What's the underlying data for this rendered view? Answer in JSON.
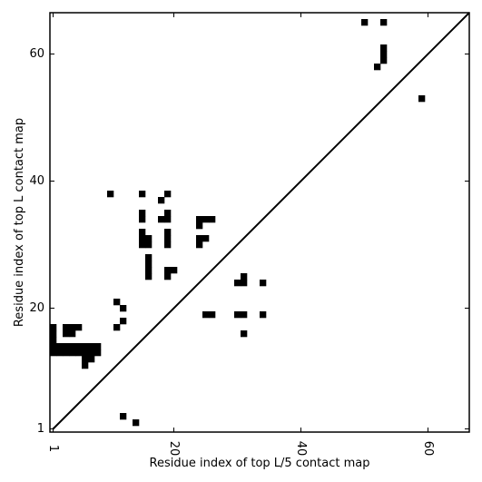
{
  "chart_data": {
    "type": "heatmap",
    "title": "",
    "xlabel": "Residue index of top L/5 contact map",
    "ylabel": "Residue index of top L contact map",
    "xlim": [
      0.5,
      66.5
    ],
    "ylim": [
      0.5,
      66.5
    ],
    "xticks": [
      {
        "value": 1,
        "label": "1"
      },
      {
        "value": 20,
        "label": "20"
      },
      {
        "value": 40,
        "label": "40"
      },
      {
        "value": 60,
        "label": "60"
      }
    ],
    "yticks": [
      {
        "value": 1,
        "label": "1"
      },
      {
        "value": 20,
        "label": "20"
      },
      {
        "value": 40,
        "label": "40"
      },
      {
        "value": 60,
        "label": "60"
      }
    ],
    "diagonal": true,
    "grid": false,
    "cell_color": "#000000",
    "background_color": "#ffffff",
    "cells": [
      [
        1,
        13
      ],
      [
        1,
        14
      ],
      [
        1,
        15
      ],
      [
        1,
        16
      ],
      [
        1,
        17
      ],
      [
        2,
        13
      ],
      [
        2,
        14
      ],
      [
        3,
        13
      ],
      [
        3,
        14
      ],
      [
        3,
        16
      ],
      [
        3,
        17
      ],
      [
        4,
        13
      ],
      [
        4,
        14
      ],
      [
        4,
        16
      ],
      [
        4,
        17
      ],
      [
        5,
        13
      ],
      [
        5,
        14
      ],
      [
        5,
        17
      ],
      [
        6,
        11
      ],
      [
        6,
        12
      ],
      [
        6,
        13
      ],
      [
        6,
        14
      ],
      [
        7,
        12
      ],
      [
        7,
        13
      ],
      [
        7,
        14
      ],
      [
        8,
        13
      ],
      [
        8,
        14
      ],
      [
        10,
        38
      ],
      [
        11,
        17
      ],
      [
        11,
        21
      ],
      [
        12,
        3
      ],
      [
        12,
        18
      ],
      [
        12,
        20
      ],
      [
        14,
        2
      ],
      [
        15,
        30
      ],
      [
        15,
        31
      ],
      [
        15,
        32
      ],
      [
        15,
        34
      ],
      [
        15,
        35
      ],
      [
        15,
        38
      ],
      [
        16,
        25
      ],
      [
        16,
        26
      ],
      [
        16,
        27
      ],
      [
        16,
        28
      ],
      [
        16,
        30
      ],
      [
        16,
        31
      ],
      [
        18,
        34
      ],
      [
        18,
        37
      ],
      [
        19,
        25
      ],
      [
        19,
        26
      ],
      [
        19,
        30
      ],
      [
        19,
        31
      ],
      [
        19,
        32
      ],
      [
        19,
        34
      ],
      [
        19,
        35
      ],
      [
        19,
        38
      ],
      [
        20,
        26
      ],
      [
        24,
        30
      ],
      [
        24,
        31
      ],
      [
        24,
        33
      ],
      [
        24,
        34
      ],
      [
        25,
        19
      ],
      [
        25,
        31
      ],
      [
        25,
        34
      ],
      [
        26,
        19
      ],
      [
        26,
        34
      ],
      [
        30,
        19
      ],
      [
        30,
        24
      ],
      [
        31,
        16
      ],
      [
        31,
        19
      ],
      [
        31,
        24
      ],
      [
        31,
        25
      ],
      [
        34,
        19
      ],
      [
        34,
        24
      ],
      [
        50,
        65
      ],
      [
        52,
        58
      ],
      [
        53,
        59
      ],
      [
        53,
        60
      ],
      [
        53,
        61
      ],
      [
        53,
        65
      ],
      [
        59,
        53
      ]
    ]
  }
}
